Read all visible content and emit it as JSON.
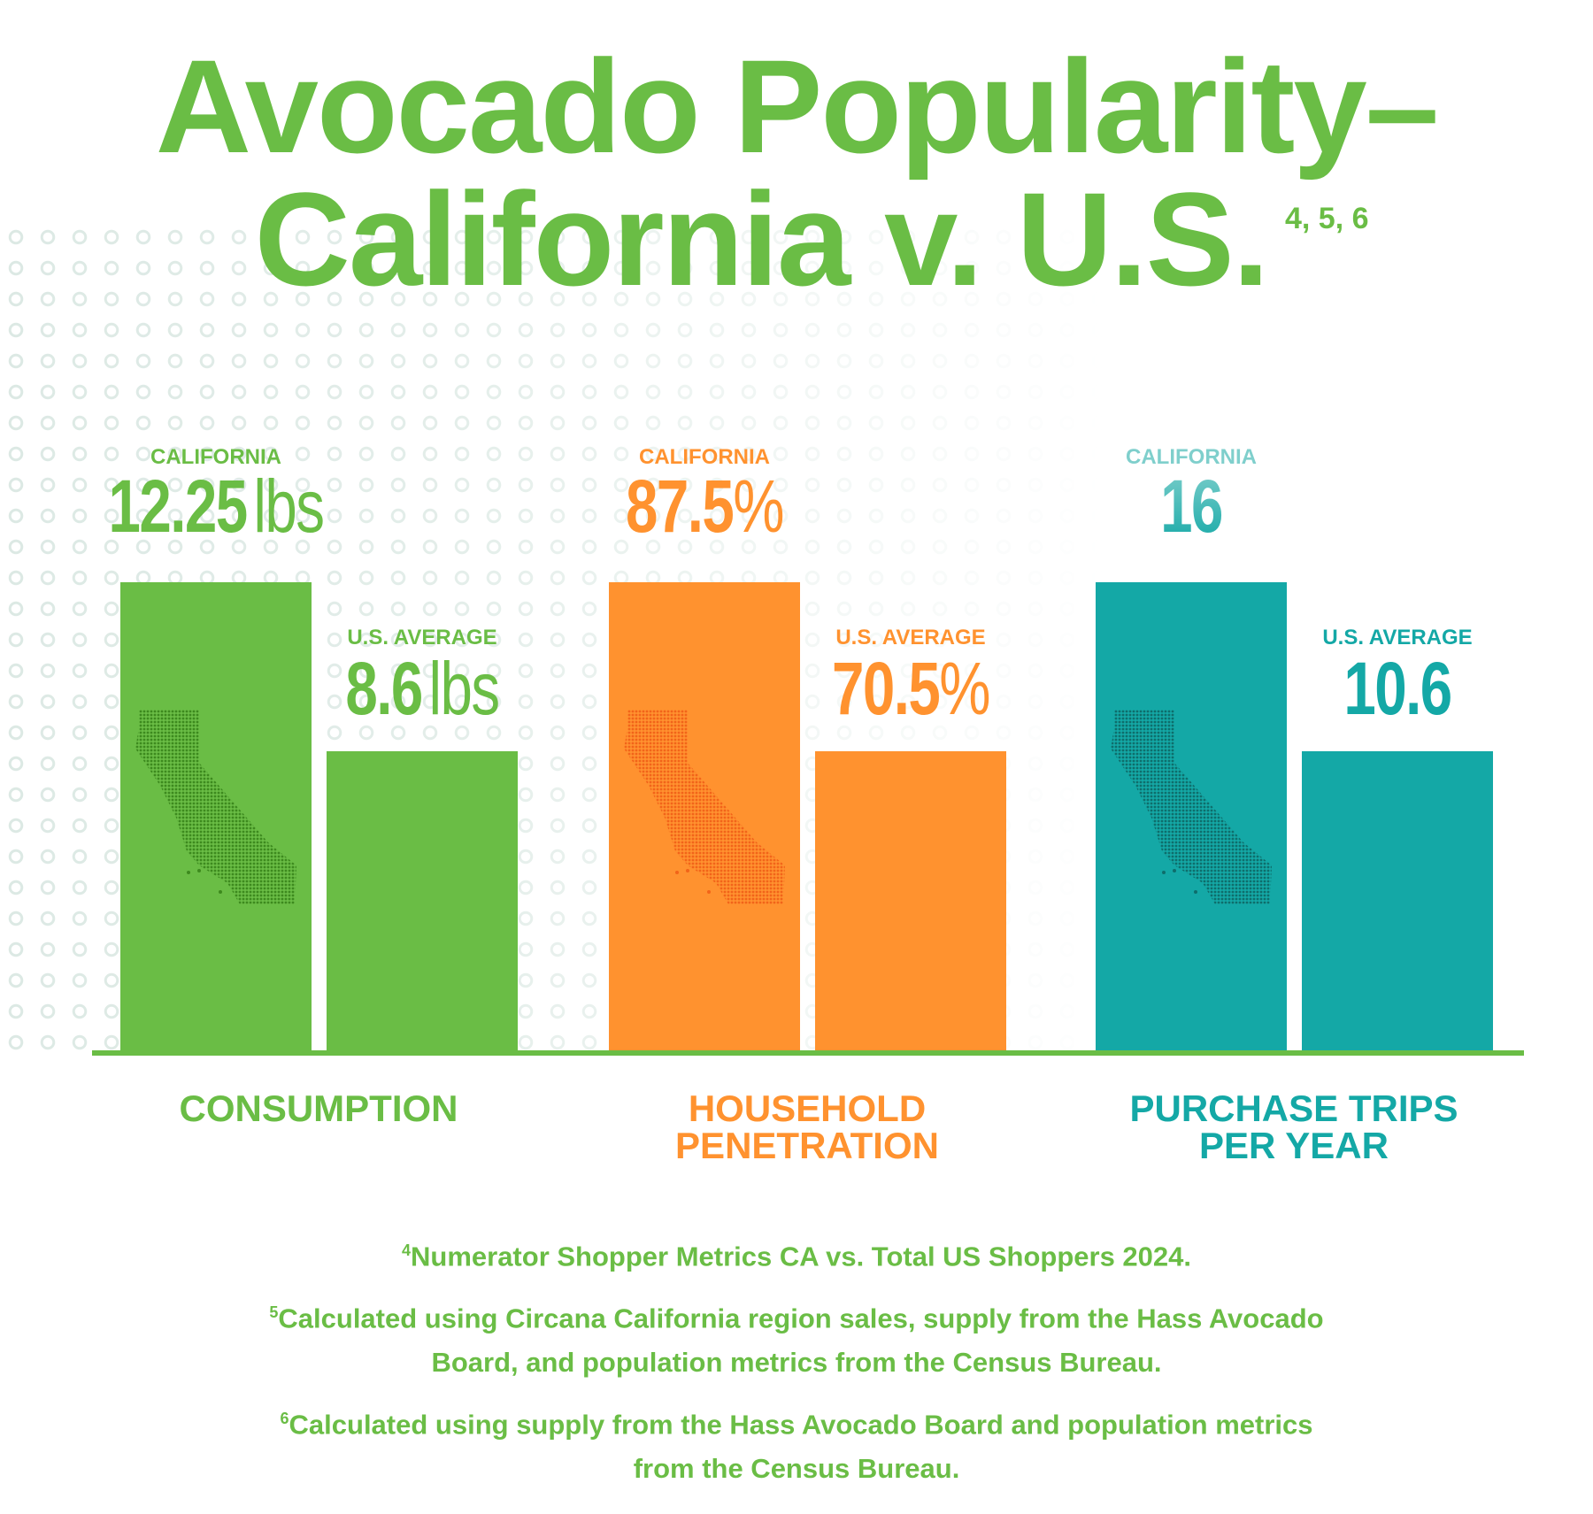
{
  "title": {
    "line1": "Avocado Popularity–",
    "line2": "California v. U.S.",
    "superscript": "4, 5, 6"
  },
  "colors": {
    "consumption": "#6abd45",
    "household": "#ff922f",
    "trips": "#14a8a6",
    "trips_label": "#7fcfcc",
    "map_green": "#3d8a1e",
    "map_orange": "#f26419",
    "map_teal": "#0e6e6c"
  },
  "chart_data": {
    "type": "bar",
    "groups": [
      {
        "category": "CONSUMPTION",
        "california": {
          "label": "CALIFORNIA",
          "value": 12.25,
          "display": "12.25",
          "unit": "lbs"
        },
        "us": {
          "label": "U.S. AVERAGE",
          "value": 8.6,
          "display": "8.6",
          "unit": "lbs"
        }
      },
      {
        "category": "HOUSEHOLD PENETRATION",
        "california": {
          "label": "CALIFORNIA",
          "value": 87.5,
          "display": "87.5",
          "unit": "%"
        },
        "us": {
          "label": "U.S. AVERAGE",
          "value": 70.5,
          "display": "70.5",
          "unit": "%"
        }
      },
      {
        "category": "PURCHASE TRIPS PER YEAR",
        "california": {
          "label": "CALIFORNIA",
          "value": 16,
          "display": "16",
          "unit": ""
        },
        "us": {
          "label": "U.S. AVERAGE",
          "value": 10.6,
          "display": "10.6",
          "unit": ""
        }
      }
    ],
    "category_lines": [
      [
        "CONSUMPTION"
      ],
      [
        "HOUSEHOLD",
        "PENETRATION"
      ],
      [
        "PURCHASE TRIPS",
        "PER YEAR"
      ]
    ]
  },
  "footnotes": [
    {
      "num": "4",
      "text": "Numerator Shopper Metrics CA vs. Total US Shoppers 2024."
    },
    {
      "num": "5",
      "text": "Calculated using Circana California region sales, supply from the Hass Avocado Board, and population metrics from the Census Bureau."
    },
    {
      "num": "6",
      "text": "Calculated using supply from the Hass Avocado Board and population metrics from the Census Bureau."
    }
  ]
}
